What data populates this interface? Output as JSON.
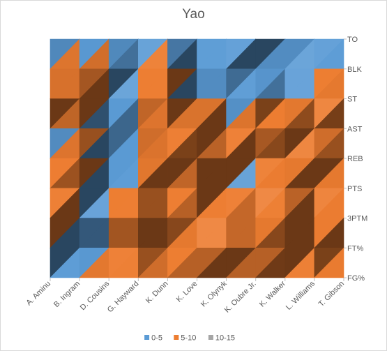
{
  "chart_data": {
    "type": "surface",
    "title": "Yao",
    "categories": [
      "A. Aminu",
      "B. Ingram",
      "D. Cousins",
      "G. Hayward",
      "K. Dunn",
      "K. Love",
      "K. Olynyk",
      "K. Oubre Jr.",
      "K. Walker",
      "L. Williams",
      "T. Gibson"
    ],
    "series": [
      {
        "name": "TO",
        "values": [
          3,
          2,
          3,
          2,
          4,
          2,
          2,
          4,
          2,
          2,
          4
        ]
      },
      {
        "name": "BLK",
        "values": [
          7,
          7,
          6,
          4,
          7,
          3,
          3,
          2,
          2,
          3,
          7
        ]
      },
      {
        "name": "ST",
        "values": [
          7,
          7,
          4,
          5,
          8,
          3,
          3,
          6,
          4,
          5,
          7
        ]
      },
      {
        "name": "AST",
        "values": [
          2,
          6,
          4,
          4,
          9,
          9,
          3,
          6,
          10,
          7,
          6
        ]
      },
      {
        "name": "REB",
        "values": [
          2,
          7,
          3,
          4,
          11,
          9,
          7,
          4,
          7,
          9,
          7
        ]
      },
      {
        "name": "PTS",
        "values": [
          6,
          6,
          3,
          7,
          5,
          8,
          4,
          6,
          7,
          5,
          7
        ]
      },
      {
        "name": "3PTM",
        "values": [
          7,
          4,
          5,
          8,
          6,
          7,
          8,
          7,
          11,
          6,
          7
        ]
      },
      {
        "name": "FT%",
        "values": [
          6,
          2,
          3,
          6,
          4,
          8,
          9,
          8,
          9,
          6,
          3
        ]
      },
      {
        "name": "FG%",
        "values": [
          4,
          7,
          7,
          7,
          6,
          7,
          6,
          7,
          7,
          7,
          9
        ]
      }
    ],
    "zlim": [
      0,
      15
    ],
    "legend": {
      "position": "bottom",
      "entries": [
        {
          "label": "0-5",
          "color": "#5b9bd5"
        },
        {
          "label": "5-10",
          "color": "#ed7d31"
        },
        {
          "label": "10-15",
          "color": "#a5a5a5"
        }
      ]
    },
    "view": "top-down contour",
    "grid": false
  }
}
